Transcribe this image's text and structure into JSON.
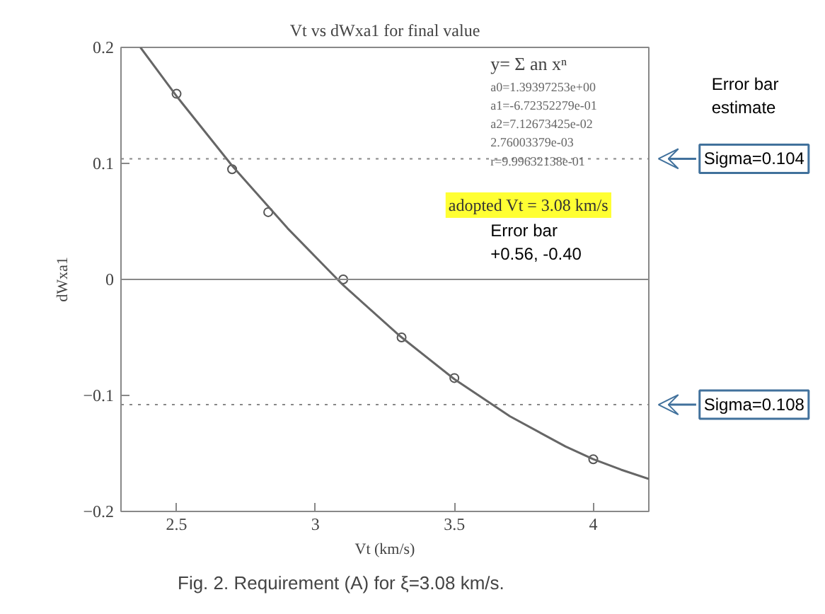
{
  "chart_data": {
    "type": "scatter",
    "title": "Vt vs dWxa1 for final value",
    "xlabel": "Vt (km/s)",
    "ylabel": "dWxa1",
    "xlim": [
      2.3,
      4.2
    ],
    "ylim": [
      -0.2,
      0.2
    ],
    "xticks": [
      2.5,
      3,
      3.5,
      4
    ],
    "yticks": [
      -0.2,
      -0.1,
      0,
      0.1,
      0.2
    ],
    "marker": "circle",
    "grid": false,
    "series": [
      {
        "color": "#555555",
        "x": [
          2.5,
          2.7,
          2.83,
          3.1,
          3.31,
          3.5,
          4.0
        ],
        "values": [
          0.16,
          0.095,
          0.058,
          0.0,
          -0.05,
          -0.085,
          -0.155
        ]
      },
      {
        "type": "line",
        "color": "#666666",
        "marker": "none",
        "line_style": "solid",
        "x": [
          2.37,
          2.5,
          2.7,
          2.9,
          3.1,
          3.3,
          3.5,
          3.7,
          3.9,
          4.0,
          4.1,
          4.2
        ],
        "values": [
          0.2,
          0.158,
          0.098,
          0.044,
          -0.005,
          -0.048,
          -0.086,
          -0.118,
          -0.144,
          -0.155,
          -0.164,
          -0.172
        ]
      }
    ],
    "ref_lines": [
      {
        "axis": "y",
        "value": 0,
        "line_style": "solid",
        "color": "#888888"
      },
      {
        "axis": "y",
        "value": 0.104,
        "line_style": "dotted",
        "color": "#888888"
      },
      {
        "axis": "y",
        "value": -0.108,
        "line_style": "dotted",
        "color": "#888888"
      }
    ],
    "annotations": [
      "y= Σ an xⁿ",
      "a0=1.39397253e+00",
      "a1=-6.72352279e-01",
      "a2=7.12673425e-02",
      "2.76003379e-03",
      "r=9.99632138e-01",
      "adopted Vt = 3.08 km/s",
      "Error bar",
      "+0.56, -0.40",
      "Error bar",
      "estimate",
      "Sigma=0.104",
      "Sigma=0.108",
      "Fig. 2.  Requirement (A) for ξ=3.08 km/s."
    ]
  }
}
